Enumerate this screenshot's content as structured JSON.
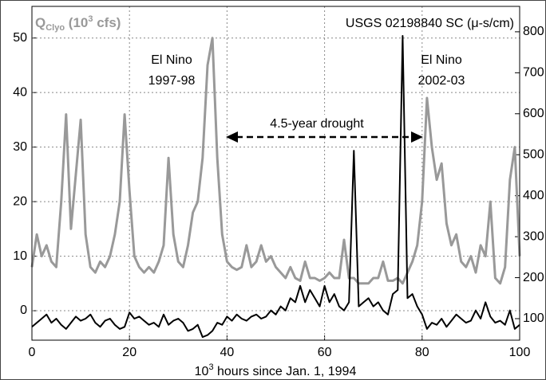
{
  "chart_data": {
    "type": "line",
    "ylabel": [
      "Q",
      "Clyo",
      " (10",
      "3",
      " cfs)"
    ],
    "y2label": "USGS 02198840 SC (μ-s/cm)",
    "xlabel": [
      "10",
      "3",
      " hours since Jan. 1, 1994"
    ],
    "annotations": [
      "El Nino",
      "1997-98",
      "El Nino",
      "2002-03",
      "4.5-year drought"
    ],
    "x": [
      0,
      1,
      2,
      3,
      4,
      5,
      6,
      7,
      8,
      9,
      10,
      11,
      12,
      13,
      14,
      15,
      16,
      17,
      18,
      19,
      20,
      21,
      22,
      23,
      24,
      25,
      26,
      27,
      28,
      29,
      30,
      31,
      32,
      33,
      34,
      35,
      36,
      37,
      38,
      39,
      40,
      41,
      42,
      43,
      44,
      45,
      46,
      47,
      48,
      49,
      50,
      51,
      52,
      53,
      54,
      55,
      56,
      57,
      58,
      59,
      60,
      61,
      62,
      63,
      64,
      65,
      66,
      67,
      68,
      69,
      70,
      71,
      72,
      73,
      74,
      75,
      76,
      77,
      78,
      79,
      80,
      81,
      82,
      83,
      84,
      85,
      86,
      87,
      88,
      89,
      90,
      91,
      92,
      93,
      94,
      95,
      96,
      97,
      98,
      99,
      100
    ],
    "series": [
      {
        "color": "#999999",
        "axis": "y",
        "values": [
          8,
          14,
          10,
          12,
          9,
          8,
          20,
          36,
          15,
          25,
          35,
          14,
          8,
          7,
          9,
          8,
          10,
          14,
          20,
          36,
          22,
          10,
          8,
          7,
          8,
          7,
          9,
          12,
          28,
          14,
          9,
          8,
          12,
          18,
          20,
          28,
          45,
          50,
          28,
          14,
          9,
          8,
          7.5,
          8,
          12,
          8,
          9,
          12,
          9,
          10,
          8,
          7,
          6,
          8,
          6,
          5.5,
          9,
          6,
          6,
          5.5,
          6,
          7,
          6,
          6,
          13,
          6,
          6,
          5,
          5,
          5,
          6,
          6,
          9,
          5.5,
          5.5,
          6,
          5,
          7,
          9,
          12,
          20,
          39,
          30,
          24,
          27,
          16,
          12,
          14,
          9,
          8,
          10,
          7,
          12,
          10,
          20,
          6,
          5,
          8,
          24,
          30,
          10
        ]
      },
      {
        "color": "#000000",
        "axis": "y2",
        "values": [
          80,
          90,
          100,
          110,
          90,
          100,
          85,
          75,
          90,
          105,
          95,
          100,
          110,
          90,
          80,
          95,
          100,
          85,
          75,
          80,
          115,
          100,
          105,
          95,
          85,
          90,
          80,
          110,
          85,
          95,
          100,
          90,
          70,
          75,
          85,
          55,
          60,
          70,
          90,
          85,
          105,
          95,
          110,
          100,
          95,
          105,
          110,
          100,
          105,
          120,
          110,
          130,
          120,
          150,
          140,
          180,
          140,
          170,
          150,
          130,
          180,
          140,
          160,
          130,
          120,
          140,
          510,
          130,
          140,
          150,
          130,
          140,
          120,
          110,
          160,
          170,
          790,
          150,
          160,
          130,
          110,
          75,
          90,
          85,
          100,
          80,
          95,
          110,
          100,
          90,
          95,
          120,
          100,
          140,
          105,
          90,
          95,
          85,
          120,
          75,
          85
        ]
      }
    ],
    "xlim": [
      0,
      100
    ],
    "xticks": [
      0,
      20,
      40,
      60,
      80,
      100
    ],
    "ylim": [
      -5.4,
      55.8
    ],
    "yticks": [
      0,
      10,
      20,
      30,
      40,
      50
    ],
    "y2lim": [
      47.5,
      862
    ],
    "y2ticks": [
      100,
      200,
      300,
      400,
      500,
      600,
      700,
      800
    ],
    "grid": true
  }
}
